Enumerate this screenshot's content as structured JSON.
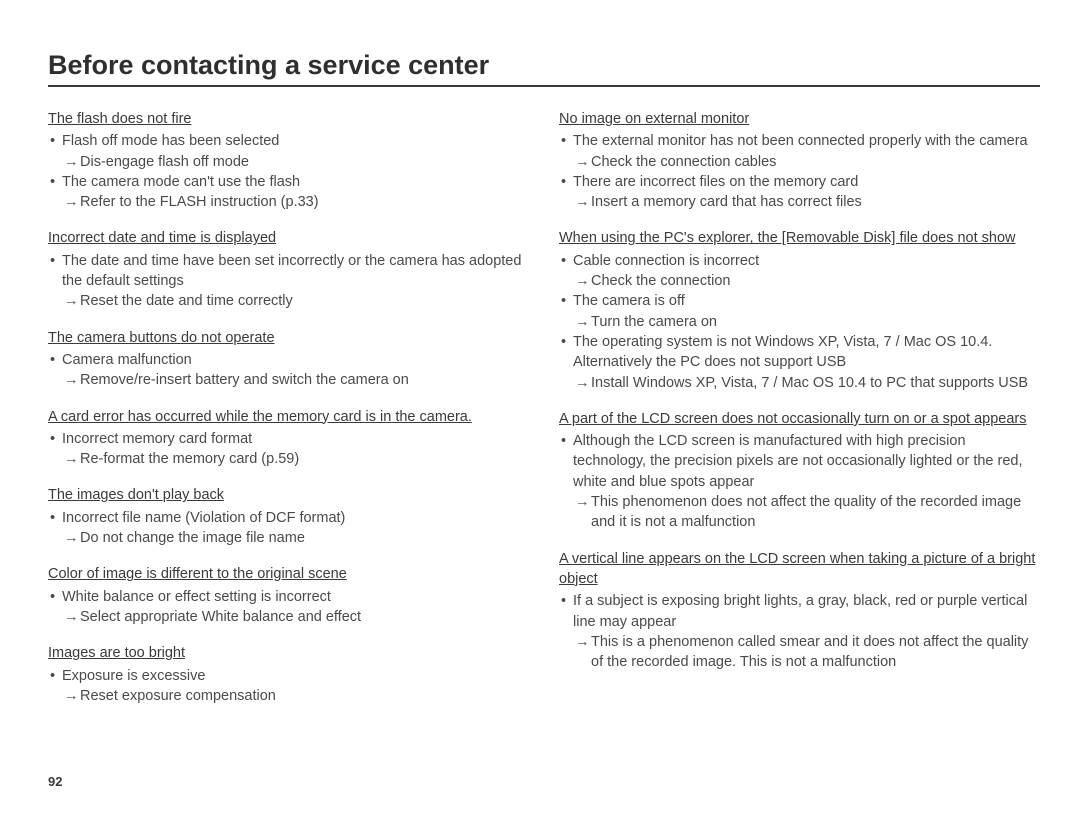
{
  "page_number": "92",
  "title": "Before contacting a service center",
  "left": [
    {
      "title": "The flash does not fire",
      "lines": [
        {
          "type": "item",
          "text": "Flash off mode has been selected"
        },
        {
          "type": "arrow",
          "text": "Dis-engage flash off mode"
        },
        {
          "type": "item",
          "text": "The camera mode can't use the flash"
        },
        {
          "type": "arrow",
          "text": "Refer to the FLASH instruction (p.33)"
        }
      ]
    },
    {
      "title": "Incorrect date and time is displayed",
      "lines": [
        {
          "type": "item",
          "text": "The date and time have been set incorrectly or the camera has adopted the default settings"
        },
        {
          "type": "arrow",
          "text": "Reset the date and time correctly"
        }
      ]
    },
    {
      "title": "The camera buttons do not operate",
      "lines": [
        {
          "type": "item",
          "text": "Camera malfunction"
        },
        {
          "type": "arrow",
          "text": "Remove/re-insert battery and switch the camera on"
        }
      ]
    },
    {
      "title": "A card error has occurred while the memory card is in the camera.",
      "lines": [
        {
          "type": "item",
          "text": "Incorrect memory card format"
        },
        {
          "type": "arrow",
          "text": "Re-format the memory card (p.59)"
        }
      ]
    },
    {
      "title": "The images don't play back",
      "lines": [
        {
          "type": "item",
          "text": "Incorrect file name (Violation of DCF format)"
        },
        {
          "type": "arrow",
          "text": "Do not change the image file name"
        }
      ]
    },
    {
      "title": "Color of image is different to the original scene",
      "lines": [
        {
          "type": "item",
          "text": "White balance or effect setting is incorrect"
        },
        {
          "type": "arrow",
          "text": "Select appropriate White balance and effect"
        }
      ]
    },
    {
      "title": "Images are too bright",
      "lines": [
        {
          "type": "item",
          "text": "Exposure is excessive"
        },
        {
          "type": "arrow",
          "text": "Reset exposure compensation"
        }
      ]
    }
  ],
  "right": [
    {
      "title": "No image on external monitor",
      "lines": [
        {
          "type": "item",
          "text": "The external monitor has not been connected properly with the camera"
        },
        {
          "type": "arrow",
          "text": "Check the connection cables"
        },
        {
          "type": "item",
          "text": "There are incorrect files on the memory card"
        },
        {
          "type": "arrow",
          "text": "Insert a memory card that has correct files"
        }
      ]
    },
    {
      "title": "When using the PC's explorer, the [Removable Disk] file does not show",
      "lines": [
        {
          "type": "item",
          "text": "Cable connection is incorrect"
        },
        {
          "type": "arrow",
          "text": "Check the connection"
        },
        {
          "type": "item",
          "text": "The camera is off"
        },
        {
          "type": "arrow",
          "text": "Turn the camera on"
        },
        {
          "type": "item",
          "text": "The operating system is not Windows XP, Vista, 7 / Mac OS 10.4. Alternatively the PC does not support USB"
        },
        {
          "type": "arrow",
          "text": "Install Windows XP, Vista, 7 / Mac OS 10.4 to PC that supports USB"
        }
      ]
    },
    {
      "title": "A part of the LCD screen does not occasionally turn on or a spot appears",
      "lines": [
        {
          "type": "item",
          "text": "Although the LCD screen is manufactured with high precision technology, the precision pixels are not occasionally lighted or the red, white and blue spots appear"
        },
        {
          "type": "arrow",
          "text": "This phenomenon does not affect the quality of the recorded image and it is not a malfunction"
        }
      ]
    },
    {
      "title": "A vertical line appears on the LCD screen when taking a picture of a bright object",
      "lines": [
        {
          "type": "item",
          "text": "If a subject is exposing bright lights, a gray, black, red or purple vertical line may appear"
        },
        {
          "type": "arrow",
          "text": "This is a phenomenon called smear and it does not affect the quality of the recorded image. This is not a malfunction"
        }
      ]
    }
  ]
}
